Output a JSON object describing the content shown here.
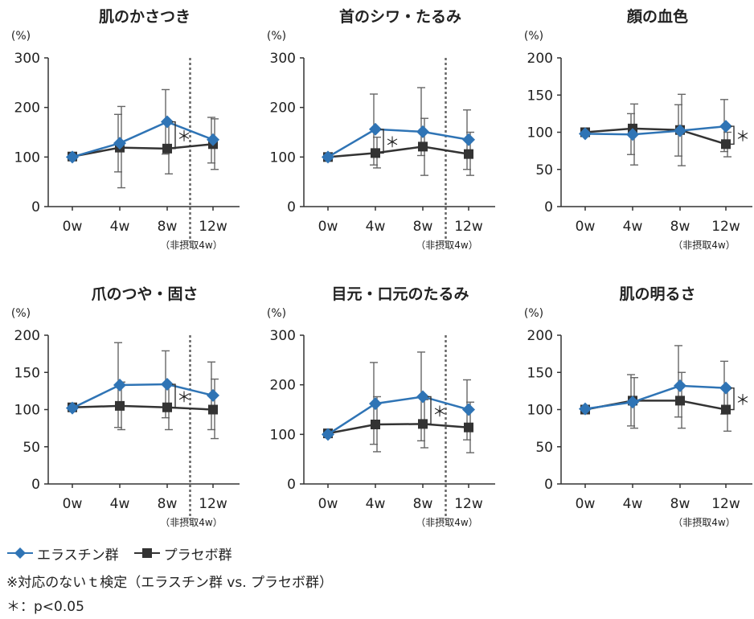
{
  "colors": {
    "elastin": "#2f74b5",
    "placebo": "#333333",
    "axis": "#333333",
    "error": "#666666",
    "divider": "#666666"
  },
  "legend": {
    "elastin": "エラスチン群",
    "placebo": "プラセボ群"
  },
  "notes": {
    "method": "※対応のないｔ検定（エラスチン群 vs. プラセボ群）",
    "significance": "＊：p<0.05"
  },
  "chart_data": [
    {
      "type": "line",
      "title": "肌のかさつき",
      "ylabel": "(%)",
      "categories": [
        "0w",
        "4w",
        "8w",
        "12w"
      ],
      "sublabel": "（非摂取4w）",
      "ylim": [
        0,
        300
      ],
      "yticks": [
        0,
        100,
        200,
        300
      ],
      "divider_after": 2,
      "series": [
        {
          "name": "エラスチン群",
          "values": [
            100,
            128,
            171,
            135
          ],
          "err_low": [
            100,
            70,
            106,
            88
          ],
          "err_high": [
            100,
            186,
            236,
            180
          ]
        },
        {
          "name": "プラセボ群",
          "values": [
            101,
            119,
            117,
            126
          ],
          "err_low": [
            101,
            38,
            66,
            75
          ],
          "err_high": [
            101,
            202,
            168,
            177
          ]
        }
      ],
      "significance": [
        {
          "between": 2,
          "label": "＊"
        }
      ]
    },
    {
      "type": "line",
      "title": "首のシワ・たるみ",
      "ylabel": "(%)",
      "categories": [
        "0w",
        "4w",
        "8w",
        "12w"
      ],
      "sublabel": "（非摂取4w）",
      "ylim": [
        0,
        300
      ],
      "yticks": [
        0,
        100,
        200,
        300
      ],
      "divider_after": 2,
      "series": [
        {
          "name": "エラスチン群",
          "values": [
            100,
            156,
            151,
            135
          ],
          "err_low": [
            100,
            84,
            103,
            75
          ],
          "err_high": [
            100,
            227,
            240,
            195
          ]
        },
        {
          "name": "プラセボ群",
          "values": [
            100,
            108,
            121,
            106
          ],
          "err_low": [
            100,
            78,
            63,
            63
          ],
          "err_high": [
            100,
            140,
            178,
            150
          ]
        }
      ],
      "significance": [
        {
          "between": 1,
          "label": "＊"
        }
      ]
    },
    {
      "type": "line",
      "title": "顔の血色",
      "ylabel": "(%)",
      "categories": [
        "0w",
        "4w",
        "8w",
        "12w"
      ],
      "sublabel": "（非摂取4w）",
      "ylim": [
        0,
        200
      ],
      "yticks": [
        0,
        50,
        100,
        150,
        200
      ],
      "divider_after": null,
      "series": [
        {
          "name": "エラスチン群",
          "values": [
            98,
            97,
            102,
            108
          ],
          "err_low": [
            98,
            70,
            68,
            74
          ],
          "err_high": [
            98,
            125,
            137,
            144
          ]
        },
        {
          "name": "プラセボ群",
          "values": [
            100,
            105,
            103,
            84
          ],
          "err_low": [
            100,
            56,
            55,
            67
          ],
          "err_high": [
            100,
            138,
            151,
            100
          ]
        }
      ],
      "significance": [
        {
          "between": 3,
          "label": "＊"
        }
      ]
    },
    {
      "type": "line",
      "title": "爪のつや・固さ",
      "ylabel": "(%)",
      "categories": [
        "0w",
        "4w",
        "8w",
        "12w"
      ],
      "sublabel": "（非摂取4w）",
      "ylim": [
        0,
        200
      ],
      "yticks": [
        0,
        50,
        100,
        150,
        200
      ],
      "divider_after": 2,
      "series": [
        {
          "name": "エラスチン群",
          "values": [
            102,
            133,
            134,
            119
          ],
          "err_low": [
            102,
            76,
            89,
            73
          ],
          "err_high": [
            102,
            190,
            179,
            164
          ]
        },
        {
          "name": "プラセボ群",
          "values": [
            103,
            105,
            103,
            100
          ],
          "err_low": [
            103,
            73,
            73,
            61
          ],
          "err_high": [
            103,
            137,
            133,
            141
          ]
        }
      ],
      "significance": [
        {
          "between": 2,
          "label": "＊"
        }
      ]
    },
    {
      "type": "line",
      "title": "目元・口元のたるみ",
      "ylabel": "(%)",
      "categories": [
        "0w",
        "4w",
        "8w",
        "12w"
      ],
      "sublabel": "（非摂取4w）",
      "ylim": [
        0,
        300
      ],
      "yticks": [
        0,
        100,
        200,
        300
      ],
      "divider_after": 2,
      "series": [
        {
          "name": "エラスチン群",
          "values": [
            100,
            162,
            176,
            150
          ],
          "err_low": [
            100,
            80,
            87,
            89
          ],
          "err_high": [
            100,
            245,
            266,
            210
          ]
        },
        {
          "name": "プラセボ群",
          "values": [
            102,
            120,
            121,
            114
          ],
          "err_low": [
            102,
            65,
            73,
            63
          ],
          "err_high": [
            102,
            176,
            170,
            165
          ]
        }
      ],
      "significance": [
        {
          "between": 2,
          "label": "＊"
        }
      ]
    },
    {
      "type": "line",
      "title": "肌の明るさ",
      "ylabel": "(%)",
      "categories": [
        "0w",
        "4w",
        "8w",
        "12w"
      ],
      "sublabel": "（非摂取4w）",
      "ylim": [
        0,
        200
      ],
      "yticks": [
        0,
        50,
        100,
        150,
        200
      ],
      "divider_after": null,
      "series": [
        {
          "name": "エラスチン群",
          "values": [
            101,
            110,
            132,
            129
          ],
          "err_low": [
            101,
            78,
            90,
            94
          ],
          "err_high": [
            101,
            147,
            186,
            165
          ]
        },
        {
          "name": "プラセボ群",
          "values": [
            100,
            112,
            112,
            100
          ],
          "err_low": [
            100,
            75,
            75,
            71
          ],
          "err_high": [
            100,
            143,
            150,
            128
          ]
        }
      ],
      "significance": [
        {
          "between": 3,
          "label": "＊"
        }
      ]
    }
  ]
}
